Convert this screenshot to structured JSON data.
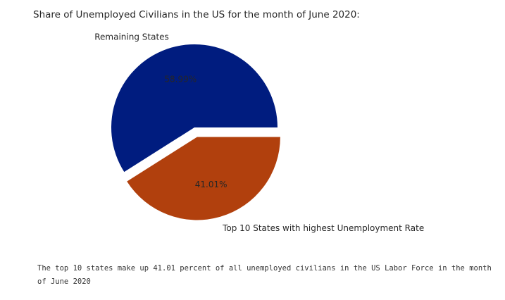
{
  "chart_data": {
    "type": "pie",
    "title": "Share of Unemployed Civilians in the US for the month of June 2020:",
    "slices": [
      {
        "label": "Remaining States",
        "value": 58.99,
        "pct_label": "58.99%",
        "color": "#001c7f",
        "explode": false
      },
      {
        "label": "Top 10 States with highest Unemployment Rate",
        "value": 41.01,
        "pct_label": "41.01%",
        "color": "#b1400d",
        "explode": true
      }
    ]
  },
  "output": {
    "text": "The top 10 states make up 41.01 percent of all unemployed civilians in the US Labor Force in the month of June 2020"
  }
}
